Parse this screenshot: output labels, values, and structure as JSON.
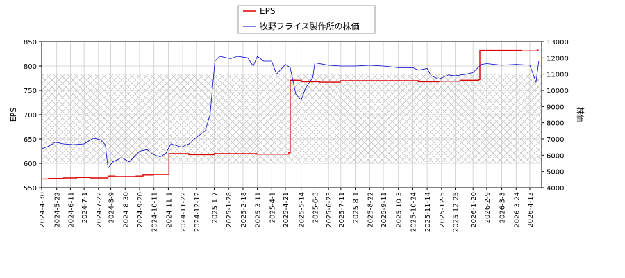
{
  "chart_data": {
    "type": "line",
    "title": "",
    "xlabel": "",
    "ylabel_left": "EPS",
    "ylabel_right": "株価",
    "grid": true,
    "legend_position": "top-center",
    "x_ticks": [
      "2024-4-30",
      "2024-5-22",
      "2024-6-11",
      "2024-7-1",
      "2024-7-22",
      "2024-8-9",
      "2024-8-30",
      "2024-9-20",
      "2024-10-11",
      "2024-11-1",
      "2024-11-22",
      "2024-12-12",
      "2025-1-7",
      "2025-1-28",
      "2025-2-18",
      "2025-3-11",
      "2025-4-1",
      "2025-4-21",
      "2025-5-14",
      "2025-6-3",
      "2025-6-23",
      "2025-7-11",
      "2025-8-1",
      "2025-8-22",
      "2025-9-11",
      "2025-10-3",
      "2025-10-24",
      "2025-11-14",
      "2025-12-5",
      "2025-12-25",
      "2026-1-20",
      "2026-2-9",
      "2026-3-3",
      "2026-3-24",
      "2026-4-13"
    ],
    "y_left": {
      "min": 550,
      "max": 850,
      "ticks": [
        550,
        600,
        650,
        700,
        750,
        800,
        850
      ]
    },
    "y_right": {
      "min": 4000,
      "max": 13000,
      "ticks": [
        4000,
        5000,
        6000,
        7000,
        8000,
        9000,
        10000,
        11000,
        12000,
        13000
      ]
    },
    "series": [
      {
        "name": "EPS",
        "color": "#dd0000",
        "axis": "left",
        "points": [
          [
            "2024-4-30",
            568
          ],
          [
            "2024-5-10",
            569
          ],
          [
            "2024-6-1",
            570
          ],
          [
            "2024-6-20",
            571
          ],
          [
            "2024-7-10",
            570
          ],
          [
            "2024-7-31",
            570
          ],
          [
            "2024-8-5",
            574
          ],
          [
            "2024-8-15",
            573
          ],
          [
            "2024-9-1",
            573
          ],
          [
            "2024-9-15",
            574
          ],
          [
            "2024-9-25",
            576
          ],
          [
            "2024-10-10",
            577
          ],
          [
            "2024-10-28",
            577
          ],
          [
            "2024-11-2",
            620
          ],
          [
            "2024-12-1",
            618
          ],
          [
            "2025-1-7",
            620
          ],
          [
            "2025-2-10",
            620
          ],
          [
            "2025-3-10",
            619
          ],
          [
            "2025-4-10",
            619
          ],
          [
            "2025-4-26",
            622
          ],
          [
            "2025-4-28",
            771
          ],
          [
            "2025-5-14",
            768
          ],
          [
            "2025-6-10",
            767
          ],
          [
            "2025-7-10",
            770
          ],
          [
            "2025-8-10",
            770
          ],
          [
            "2025-9-10",
            770
          ],
          [
            "2025-10-10",
            770
          ],
          [
            "2025-11-1",
            768
          ],
          [
            "2025-12-1",
            769
          ],
          [
            "2026-1-1",
            771
          ],
          [
            "2026-1-28",
            772
          ],
          [
            "2026-1-30",
            832
          ],
          [
            "2026-2-28",
            832
          ],
          [
            "2026-3-31",
            831
          ],
          [
            "2026-4-25",
            834
          ]
        ]
      },
      {
        "name": "牧野フライス製作所の株価",
        "color": "#0000cc",
        "axis": "right",
        "points": [
          [
            "2024-4-30",
            6400
          ],
          [
            "2024-5-10",
            6550
          ],
          [
            "2024-5-20",
            6800
          ],
          [
            "2024-6-1",
            6700
          ],
          [
            "2024-6-15",
            6650
          ],
          [
            "2024-7-1",
            6700
          ],
          [
            "2024-7-15",
            7050
          ],
          [
            "2024-7-25",
            6950
          ],
          [
            "2024-8-1",
            6650
          ],
          [
            "2024-8-5",
            5200
          ],
          [
            "2024-8-12",
            5600
          ],
          [
            "2024-8-25",
            5850
          ],
          [
            "2024-9-5",
            5600
          ],
          [
            "2024-9-20",
            6250
          ],
          [
            "2024-10-1",
            6350
          ],
          [
            "2024-10-10",
            6050
          ],
          [
            "2024-10-20",
            5900
          ],
          [
            "2024-10-28",
            6100
          ],
          [
            "2024-11-5",
            6700
          ],
          [
            "2024-11-20",
            6500
          ],
          [
            "2024-12-1",
            6700
          ],
          [
            "2024-12-12",
            7100
          ],
          [
            "2024-12-25",
            7500
          ],
          [
            "2025-1-1",
            8500
          ],
          [
            "2025-1-8",
            11800
          ],
          [
            "2025-1-15",
            12100
          ],
          [
            "2025-1-31",
            11950
          ],
          [
            "2025-2-10",
            12100
          ],
          [
            "2025-2-25",
            12000
          ],
          [
            "2025-3-5",
            11500
          ],
          [
            "2025-3-11",
            12100
          ],
          [
            "2025-3-20",
            11800
          ],
          [
            "2025-4-1",
            11800
          ],
          [
            "2025-4-8",
            11000
          ],
          [
            "2025-4-21",
            11600
          ],
          [
            "2025-4-28",
            11400
          ],
          [
            "2025-5-6",
            9800
          ],
          [
            "2025-5-14",
            9400
          ],
          [
            "2025-5-20",
            10100
          ],
          [
            "2025-5-31",
            10800
          ],
          [
            "2025-6-3",
            11700
          ],
          [
            "2025-6-23",
            11550
          ],
          [
            "2025-7-11",
            11500
          ],
          [
            "2025-8-1",
            11500
          ],
          [
            "2025-8-22",
            11550
          ],
          [
            "2025-9-11",
            11500
          ],
          [
            "2025-10-3",
            11400
          ],
          [
            "2025-10-24",
            11400
          ],
          [
            "2025-11-1",
            11250
          ],
          [
            "2025-11-14",
            11350
          ],
          [
            "2025-11-20",
            10900
          ],
          [
            "2025-12-1",
            10700
          ],
          [
            "2025-12-15",
            10950
          ],
          [
            "2025-12-25",
            10900
          ],
          [
            "2026-1-10",
            11000
          ],
          [
            "2026-1-20",
            11100
          ],
          [
            "2026-2-1",
            11600
          ],
          [
            "2026-2-9",
            11650
          ],
          [
            "2026-3-3",
            11550
          ],
          [
            "2026-3-24",
            11600
          ],
          [
            "2026-4-13",
            11550
          ],
          [
            "2026-4-22",
            10500
          ],
          [
            "2026-4-26",
            11800
          ]
        ]
      }
    ]
  }
}
